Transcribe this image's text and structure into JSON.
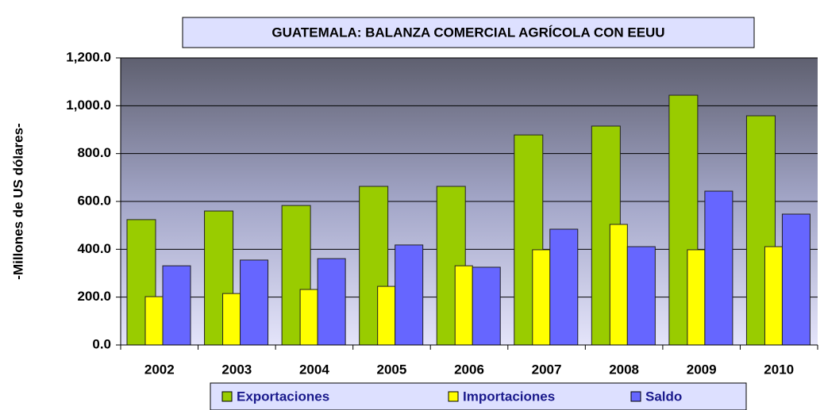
{
  "chart_data": {
    "type": "bar",
    "title": "GUATEMALA: BALANZA COMERCIAL AGRÍCOLA CON EEUU",
    "y_label": "-Millones de US dólares-",
    "categories": [
      "2002",
      "2003",
      "2004",
      "2005",
      "2006",
      "2007",
      "2008",
      "2009",
      "2010"
    ],
    "series": [
      {
        "name": "Exportaciones",
        "color": "#99cc00",
        "values": [
          524,
          560,
          583,
          663,
          663,
          878,
          915,
          1044,
          958
        ]
      },
      {
        "name": "Importaciones",
        "color": "#ffff00",
        "values": [
          202,
          215,
          232,
          245,
          331,
          398,
          504,
          398,
          411
        ]
      },
      {
        "name": "Saldo",
        "color": "#6666ff",
        "values": [
          331,
          355,
          361,
          418,
          325,
          484,
          411,
          643,
          547
        ]
      }
    ],
    "ylim": [
      0,
      1200
    ],
    "yticks": [
      {
        "value": 0,
        "label": "0.0"
      },
      {
        "value": 200,
        "label": "200.0"
      },
      {
        "value": 400,
        "label": "400.0"
      },
      {
        "value": 600,
        "label": "600.0"
      },
      {
        "value": 800,
        "label": "800.0"
      },
      {
        "value": 1000,
        "label": "1,000.0"
      },
      {
        "value": 1200,
        "label": "1,200.0"
      }
    ],
    "grid": true,
    "legend": "bottom"
  }
}
